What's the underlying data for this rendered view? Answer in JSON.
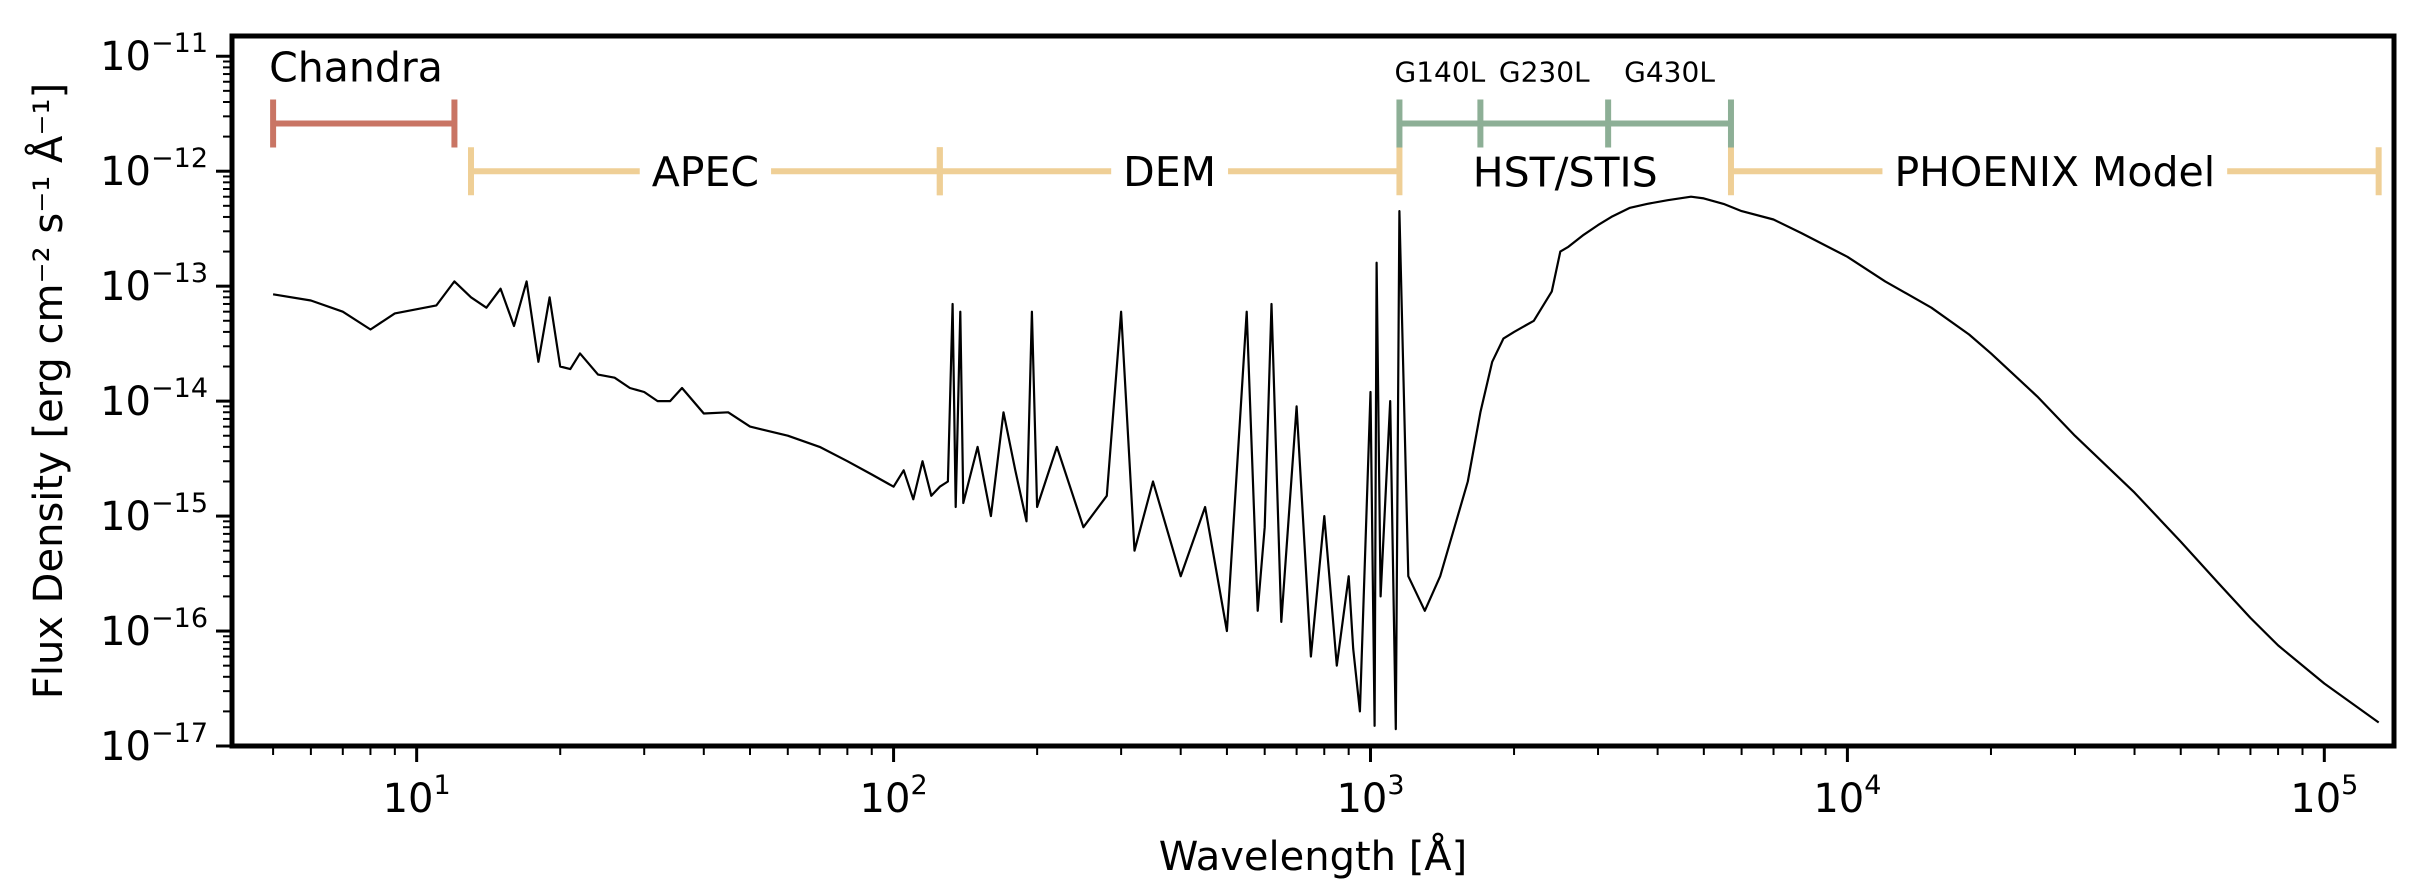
{
  "chart_data": {
    "type": "line",
    "xlabel": "Wavelength [Å]",
    "ylabel": "Flux Density [erg cm⁻² s⁻¹ Å⁻¹]",
    "x_scale": "log",
    "y_scale": "log",
    "xlim": [
      4.1,
      140000
    ],
    "ylim": [
      1e-17,
      1.5e-11
    ],
    "grid": false,
    "x_ticks": [
      {
        "value": 10,
        "base": "10",
        "exp": "1"
      },
      {
        "value": 100,
        "base": "10",
        "exp": "2"
      },
      {
        "value": 1000,
        "base": "10",
        "exp": "3"
      },
      {
        "value": 10000,
        "base": "10",
        "exp": "4"
      },
      {
        "value": 100000,
        "base": "10",
        "exp": "5"
      }
    ],
    "y_ticks": [
      {
        "value": 1e-11,
        "base": "10",
        "exp": "−11"
      },
      {
        "value": 1e-12,
        "base": "10",
        "exp": "−12"
      },
      {
        "value": 1e-13,
        "base": "10",
        "exp": "−13"
      },
      {
        "value": 1e-14,
        "base": "10",
        "exp": "−14"
      },
      {
        "value": 1e-15,
        "base": "10",
        "exp": "−15"
      },
      {
        "value": 1e-16,
        "base": "10",
        "exp": "−16"
      },
      {
        "value": 1e-17,
        "base": "10",
        "exp": "−17"
      }
    ],
    "ranges": [
      {
        "label": "Chandra",
        "x0": 5,
        "x1": 12,
        "y": 2.6e-12,
        "color": "#c97564",
        "label_pos": "above-left"
      },
      {
        "label": "APEC",
        "x0": 13,
        "x1": 125,
        "y": 1e-12,
        "color": "#efcf96",
        "label_pos": "inline"
      },
      {
        "label": "DEM",
        "x0": 125,
        "x1": 1150,
        "y": 1e-12,
        "color": "#efcf96",
        "label_pos": "inline"
      },
      {
        "label": "PHOENIX Model",
        "x0": 5700,
        "x1": 130000,
        "y": 1e-12,
        "color": "#efcf96",
        "label_pos": "inline"
      },
      {
        "label": "HST/STIS",
        "x0": 1150,
        "x1": 5700,
        "y": 2.6e-12,
        "color": "#8daf96",
        "label_pos": "below",
        "dividers": [
          1700,
          3150
        ]
      },
      {
        "label": "G140L",
        "x0": 1150,
        "x1": 1700,
        "y": 2.6e-12,
        "color": "#8daf96",
        "label_pos": "above-small"
      },
      {
        "label": "G230L",
        "x0": 1700,
        "x1": 3150,
        "y": 2.6e-12,
        "color": "#8daf96",
        "label_pos": "above-small"
      },
      {
        "label": "G430L",
        "x0": 3150,
        "x1": 5700,
        "y": 2.6e-12,
        "color": "#8daf96",
        "label_pos": "above-small"
      }
    ],
    "series": [
      {
        "color": "#000000",
        "x": [
          5,
          6,
          7,
          8,
          9,
          11,
          12,
          13,
          14,
          15,
          16,
          17,
          18,
          19,
          20,
          21,
          22,
          24,
          26,
          28,
          30,
          32,
          34,
          36,
          40,
          45,
          50,
          60,
          70,
          80,
          90,
          100,
          105,
          110,
          115,
          120,
          125,
          130,
          133,
          135,
          138,
          140,
          150,
          160,
          170,
          180,
          190,
          195,
          200,
          220,
          250,
          280,
          300,
          320,
          350,
          400,
          450,
          500,
          550,
          580,
          600,
          620,
          650,
          700,
          750,
          800,
          850,
          900,
          920,
          950,
          1000,
          1020,
          1030,
          1050,
          1100,
          1130,
          1150,
          1200,
          1300,
          1400,
          1500,
          1600,
          1700,
          1800,
          1900,
          2000,
          2200,
          2400,
          2500,
          2600,
          2800,
          3000,
          3200,
          3500,
          3800,
          4200,
          4700,
          5000,
          5500,
          6000,
          7000,
          8000,
          10000,
          12000,
          15000,
          18000,
          20000,
          25000,
          30000,
          40000,
          50000,
          60000,
          70000,
          80000,
          100000,
          130000
        ],
        "y": [
          8.5e-14,
          7.5e-14,
          6e-14,
          4.2e-14,
          5.8e-14,
          6.8e-14,
          1.1e-13,
          8e-14,
          6.5e-14,
          9.5e-14,
          4.5e-14,
          1.1e-13,
          2.2e-14,
          8e-14,
          2e-14,
          1.9e-14,
          2.6e-14,
          1.7e-14,
          1.6e-14,
          1.3e-14,
          1.2e-14,
          1e-14,
          1e-14,
          1.3e-14,
          7.8e-15,
          8e-15,
          6e-15,
          5e-15,
          4e-15,
          3e-15,
          2.3e-15,
          1.8e-15,
          2.5e-15,
          1.4e-15,
          3e-15,
          1.5e-15,
          1.8e-15,
          2e-15,
          7e-14,
          1.2e-15,
          6e-14,
          1.3e-15,
          4e-15,
          1e-15,
          8e-15,
          2.5e-15,
          9e-16,
          6e-14,
          1.2e-15,
          4e-15,
          8e-16,
          1.5e-15,
          6e-14,
          5e-16,
          2e-15,
          3e-16,
          1.2e-15,
          1e-16,
          6e-14,
          1.5e-16,
          8e-16,
          7e-14,
          1.2e-16,
          9e-15,
          6e-17,
          1e-15,
          5e-17,
          3e-16,
          7e-17,
          2e-17,
          1.2e-14,
          1.5e-17,
          1.6e-13,
          2e-16,
          1e-14,
          1.4e-17,
          4.5e-13,
          3e-16,
          1.5e-16,
          3e-16,
          8e-16,
          2e-15,
          8e-15,
          2.2e-14,
          3.5e-14,
          4e-14,
          5e-14,
          9e-14,
          2e-13,
          2.2e-13,
          2.8e-13,
          3.4e-13,
          4e-13,
          4.8e-13,
          5.2e-13,
          5.6e-13,
          6e-13,
          5.8e-13,
          5.2e-13,
          4.5e-13,
          3.8e-13,
          2.9e-13,
          1.8e-13,
          1.1e-13,
          6.5e-14,
          3.8e-14,
          2.6e-14,
          1.1e-14,
          5e-15,
          1.6e-15,
          6e-16,
          2.6e-16,
          1.3e-16,
          7.5e-17,
          3.5e-17,
          1.6e-17
        ]
      }
    ]
  }
}
